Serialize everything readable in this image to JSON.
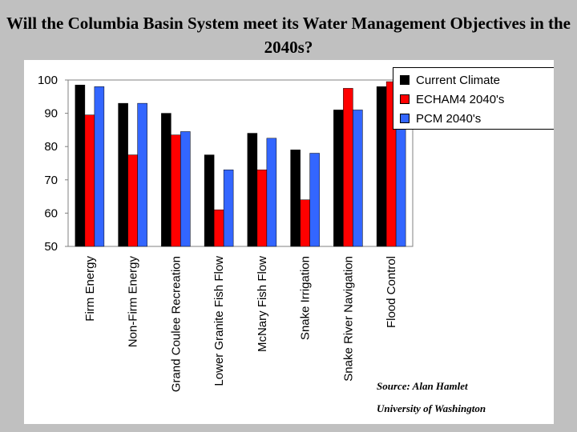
{
  "title": "Will the Columbia Basin System meet its Water Management Objectives in the 2040s?",
  "source_line1": "Source: Alan Hamlet",
  "source_line2": "University of Washington",
  "chart_data": {
    "type": "bar",
    "title": "Will the Columbia Basin System meet its Water Management Objectives in the 2040s?",
    "categories": [
      "Firm Energy",
      "Non-Firm Energy",
      "Grand Coulee Recreation",
      "Lower Granite Fish Flow",
      "McNary Fish Flow",
      "Snake Irrigation",
      "Snake River Navigation",
      "Flood Control"
    ],
    "series": [
      {
        "name": "Current Climate",
        "color": "#000000",
        "values": [
          98.5,
          93,
          90,
          77.5,
          84,
          79,
          91,
          98
        ]
      },
      {
        "name": "ECHAM4 2040's",
        "color": "#ff0000",
        "values": [
          89.5,
          77.5,
          83.5,
          61,
          73,
          64,
          97.5,
          99.5
        ]
      },
      {
        "name": "PCM 2040's",
        "color": "#3366ff",
        "values": [
          98,
          93,
          84.5,
          73,
          82.5,
          78,
          91,
          97
        ]
      }
    ],
    "ylim": [
      50,
      100
    ],
    "yticks": [
      50,
      60,
      70,
      80,
      90,
      100
    ],
    "legend": "right",
    "grid": false
  }
}
